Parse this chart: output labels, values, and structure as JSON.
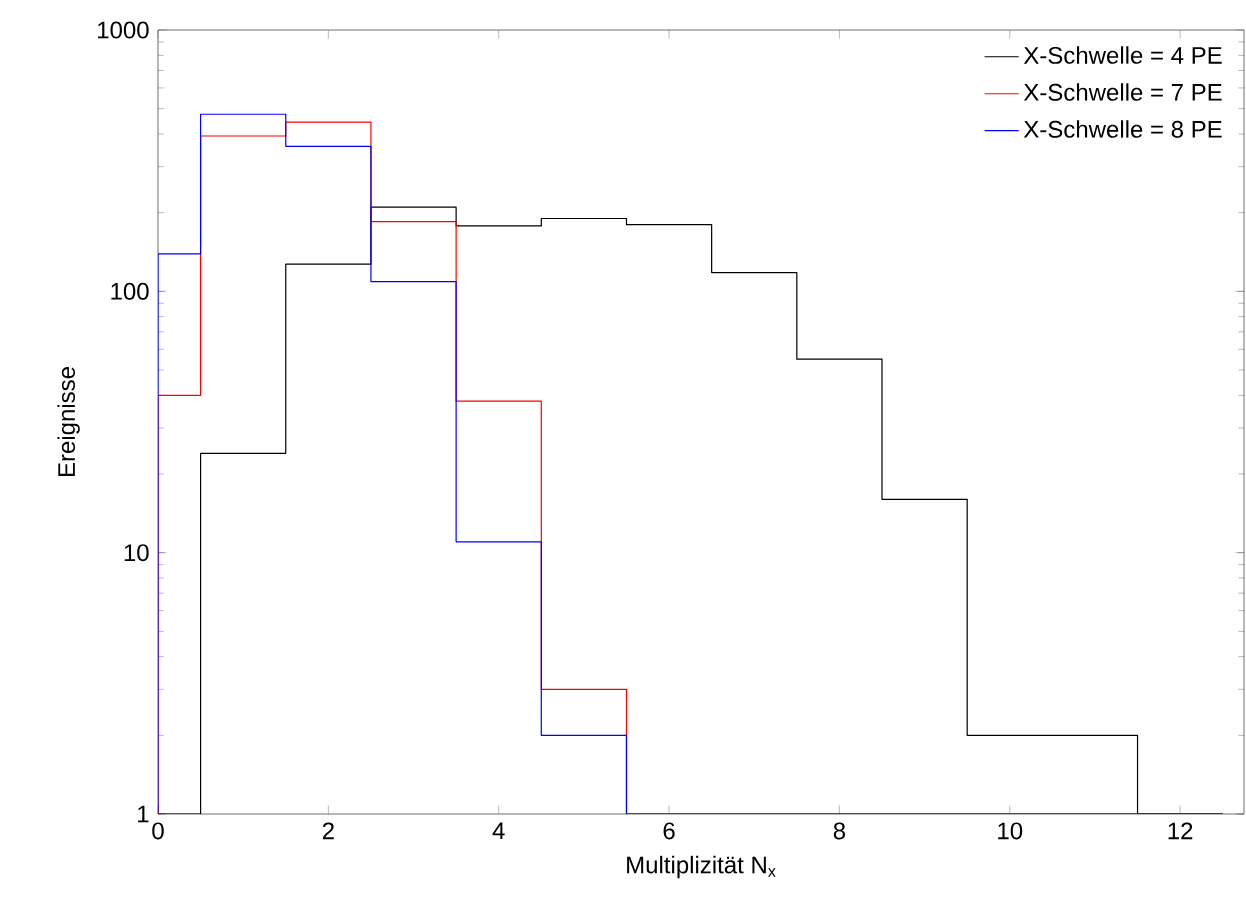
{
  "chart_data": {
    "type": "histogram",
    "xlabel": "Multiplizität N$_{x}$",
    "ylabel": "Ereignisse",
    "log": "y",
    "legend": "top right",
    "grid": false,
    "bins": [
      0,
      0.5,
      1.5,
      2.5,
      3.5,
      4.5,
      5.5,
      6.5,
      7.5,
      8.5,
      9.5,
      10.5,
      11.5,
      12.5
    ],
    "xlim": [
      0,
      12.75
    ],
    "ylim": [
      1,
      1000
    ],
    "xticks": [
      0,
      2,
      4,
      6,
      8,
      10,
      12
    ],
    "yticks": [
      1,
      10,
      100,
      1000
    ],
    "series": [
      {
        "name": "X-Schwelle = 4 PE",
        "color": "#000000",
        "values": [
          null,
          24,
          127,
          210,
          178,
          190,
          180,
          118,
          55,
          16,
          2,
          2,
          null
        ]
      },
      {
        "name": "X-Schwelle = 7 PE",
        "color": "#ff0000",
        "values": [
          40,
          393,
          444,
          185,
          38,
          3,
          null,
          null,
          null,
          null,
          null,
          null,
          null
        ]
      },
      {
        "name": "X-Schwelle = 8 PE",
        "color": "#0000ff",
        "values": [
          139,
          476,
          359,
          109,
          11,
          2,
          null,
          null,
          null,
          null,
          null,
          null,
          null
        ]
      }
    ]
  }
}
